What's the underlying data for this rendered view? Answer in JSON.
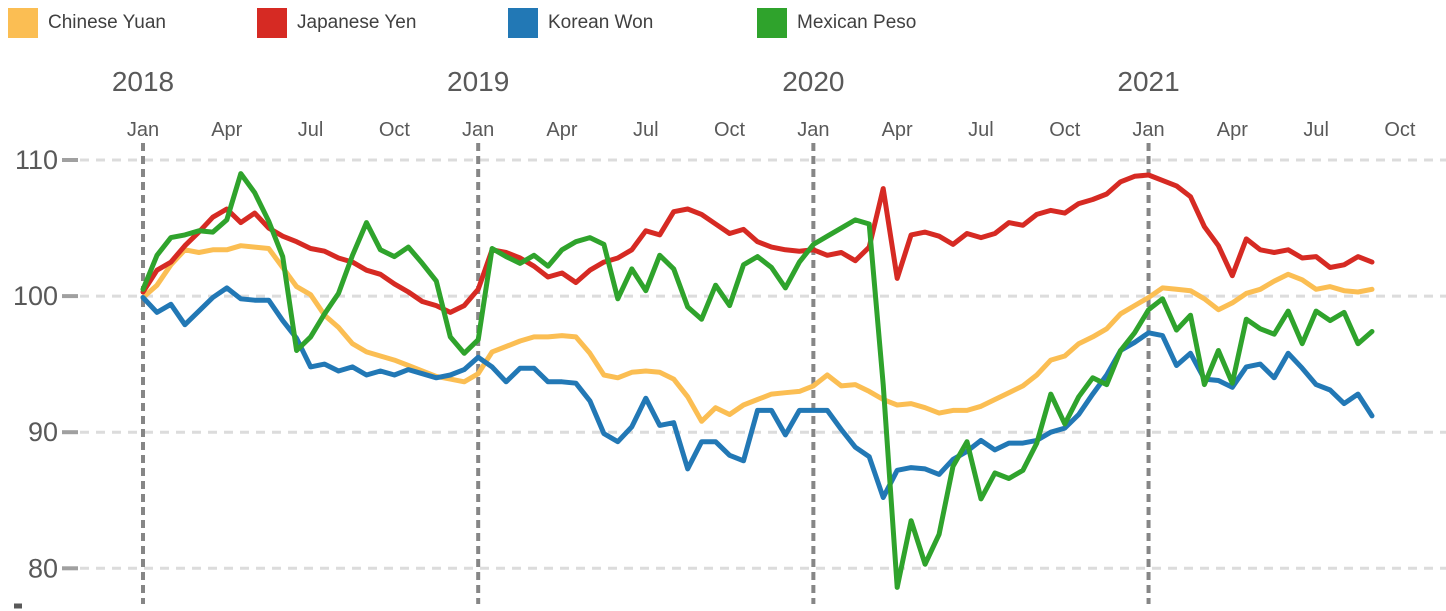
{
  "chart_data": {
    "type": "line",
    "title": "",
    "x_axis": {
      "start_label": "Jan 2018",
      "end_label": "Oct 2021",
      "points_per_month": 2,
      "ticks": [
        {
          "label": "Jan",
          "m": 0
        },
        {
          "label": "Apr",
          "m": 3
        },
        {
          "label": "Jul",
          "m": 6
        },
        {
          "label": "Oct",
          "m": 9
        },
        {
          "label": "Jan",
          "m": 12
        },
        {
          "label": "Apr",
          "m": 15
        },
        {
          "label": "Jul",
          "m": 18
        },
        {
          "label": "Oct",
          "m": 21
        },
        {
          "label": "Jan",
          "m": 24
        },
        {
          "label": "Apr",
          "m": 27
        },
        {
          "label": "Jul",
          "m": 30
        },
        {
          "label": "Oct",
          "m": 33
        },
        {
          "label": "Jan",
          "m": 36
        },
        {
          "label": "Apr",
          "m": 39
        },
        {
          "label": "Jul",
          "m": 42
        },
        {
          "label": "Oct",
          "m": 45
        }
      ],
      "years": [
        {
          "label": "2018",
          "m": 0
        },
        {
          "label": "2019",
          "m": 12
        },
        {
          "label": "2020",
          "m": 24
        },
        {
          "label": "2021",
          "m": 36
        }
      ],
      "year_lines_months": [
        0,
        12,
        24,
        36
      ]
    },
    "y_axis": {
      "ticks": [
        110,
        100,
        90,
        80
      ],
      "min": 80,
      "max": 110,
      "grid": true
    },
    "style": {
      "grid_color": "#dcdcdc",
      "year_line_color": "#868686",
      "tick_color": "#a0a0a0",
      "axis_text_color": "#595959",
      "legend_text_color": "#404040",
      "background": "#ffffff"
    },
    "series": [
      {
        "id": "chinese-yuan",
        "name": "Chinese Yuan",
        "color": "#FBBE53",
        "values": [
          99.9,
          100.8,
          102.3,
          103.4,
          103.2,
          103.4,
          103.4,
          103.7,
          103.6,
          103.5,
          102.1,
          100.7,
          100.1,
          98.6,
          97.7,
          96.5,
          95.9,
          95.6,
          95.3,
          94.9,
          94.5,
          94.1,
          93.9,
          93.7,
          94.3,
          95.9,
          96.3,
          96.7,
          97.0,
          97.0,
          97.1,
          97.0,
          95.8,
          94.2,
          94.0,
          94.4,
          94.5,
          94.4,
          93.9,
          92.6,
          90.8,
          91.8,
          91.3,
          92.0,
          92.4,
          92.8,
          92.9,
          93.0,
          93.4,
          94.2,
          93.4,
          93.5,
          93.0,
          92.4,
          92.0,
          92.1,
          91.8,
          91.4,
          91.6,
          91.6,
          91.9,
          92.4,
          92.9,
          93.4,
          94.2,
          95.3,
          95.6,
          96.5,
          97.0,
          97.6,
          98.7,
          99.3,
          99.9,
          100.6,
          100.5,
          100.4,
          99.8,
          99.0,
          99.5,
          100.2,
          100.5,
          101.1,
          101.6,
          101.2,
          100.5,
          100.7,
          100.4,
          100.3,
          100.5
        ]
      },
      {
        "id": "japanese-yen",
        "name": "Japanese Yen",
        "color": "#D62A23",
        "values": [
          100.3,
          101.9,
          102.5,
          103.7,
          104.7,
          105.8,
          106.4,
          105.4,
          106.1,
          105.0,
          104.4,
          104.0,
          103.5,
          103.3,
          102.8,
          102.5,
          101.9,
          101.6,
          100.9,
          100.3,
          99.6,
          99.3,
          98.8,
          99.3,
          100.5,
          103.4,
          103.2,
          102.8,
          102.2,
          101.4,
          101.7,
          101.0,
          101.9,
          102.5,
          102.8,
          103.4,
          104.8,
          104.5,
          106.2,
          106.4,
          106.0,
          105.3,
          104.6,
          104.9,
          104.0,
          103.6,
          103.4,
          103.3,
          103.4,
          103.0,
          103.2,
          102.6,
          103.6,
          107.9,
          101.3,
          104.5,
          104.7,
          104.4,
          103.8,
          104.6,
          104.3,
          104.6,
          105.4,
          105.2,
          106.0,
          106.3,
          106.1,
          106.8,
          107.1,
          107.5,
          108.4,
          108.8,
          108.9,
          108.5,
          108.1,
          107.3,
          105.1,
          103.7,
          101.5,
          104.2,
          103.4,
          103.2,
          103.4,
          102.8,
          102.9,
          102.1,
          102.3,
          102.9,
          102.5
        ]
      },
      {
        "id": "korean-won",
        "name": "Korean Won",
        "color": "#2278B5",
        "values": [
          99.9,
          98.8,
          99.4,
          97.9,
          98.9,
          99.9,
          100.6,
          99.8,
          99.7,
          99.7,
          98.2,
          96.9,
          94.8,
          95.0,
          94.5,
          94.8,
          94.2,
          94.5,
          94.2,
          94.6,
          94.3,
          94.0,
          94.2,
          94.6,
          95.5,
          94.8,
          93.7,
          94.7,
          94.7,
          93.7,
          93.7,
          93.6,
          92.3,
          89.9,
          89.3,
          90.4,
          92.5,
          90.5,
          90.7,
          87.3,
          89.3,
          89.3,
          88.3,
          87.9,
          91.6,
          91.6,
          89.8,
          91.6,
          91.6,
          91.6,
          90.2,
          88.9,
          88.2,
          85.2,
          87.2,
          87.4,
          87.3,
          86.9,
          88.0,
          88.6,
          89.4,
          88.7,
          89.2,
          89.2,
          89.4,
          90.0,
          90.3,
          91.3,
          92.8,
          94.2,
          96.0,
          96.6,
          97.3,
          97.1,
          94.9,
          95.8,
          93.9,
          93.8,
          93.3,
          94.8,
          95.0,
          94.0,
          95.8,
          94.7,
          93.5,
          93.1,
          92.1,
          92.8,
          91.2
        ]
      },
      {
        "id": "mexican-peso",
        "name": "Mexican Peso",
        "color": "#2FA32C",
        "values": [
          100.5,
          103.0,
          104.3,
          104.5,
          104.8,
          104.7,
          105.6,
          109.0,
          107.6,
          105.5,
          102.9,
          96.0,
          97.0,
          98.7,
          100.2,
          103.0,
          105.4,
          103.4,
          102.9,
          103.6,
          102.4,
          101.1,
          97.0,
          95.8,
          96.8,
          103.5,
          102.9,
          102.4,
          103.0,
          102.2,
          103.4,
          104.0,
          104.3,
          103.8,
          99.8,
          102.0,
          100.4,
          103.0,
          102.0,
          99.2,
          98.3,
          100.8,
          99.3,
          102.3,
          102.9,
          102.1,
          100.6,
          102.5,
          103.8,
          104.4,
          105.0,
          105.6,
          105.3,
          93.5,
          78.6,
          83.5,
          80.3,
          82.5,
          87.5,
          89.3,
          85.1,
          87.0,
          86.6,
          87.2,
          89.2,
          92.8,
          90.6,
          92.6,
          94.0,
          93.5,
          96.0,
          97.3,
          99.0,
          99.8,
          97.5,
          98.6,
          93.5,
          96.0,
          93.6,
          98.3,
          97.6,
          97.2,
          98.9,
          96.5,
          98.9,
          98.2,
          98.8,
          96.5,
          97.4
        ]
      }
    ]
  }
}
